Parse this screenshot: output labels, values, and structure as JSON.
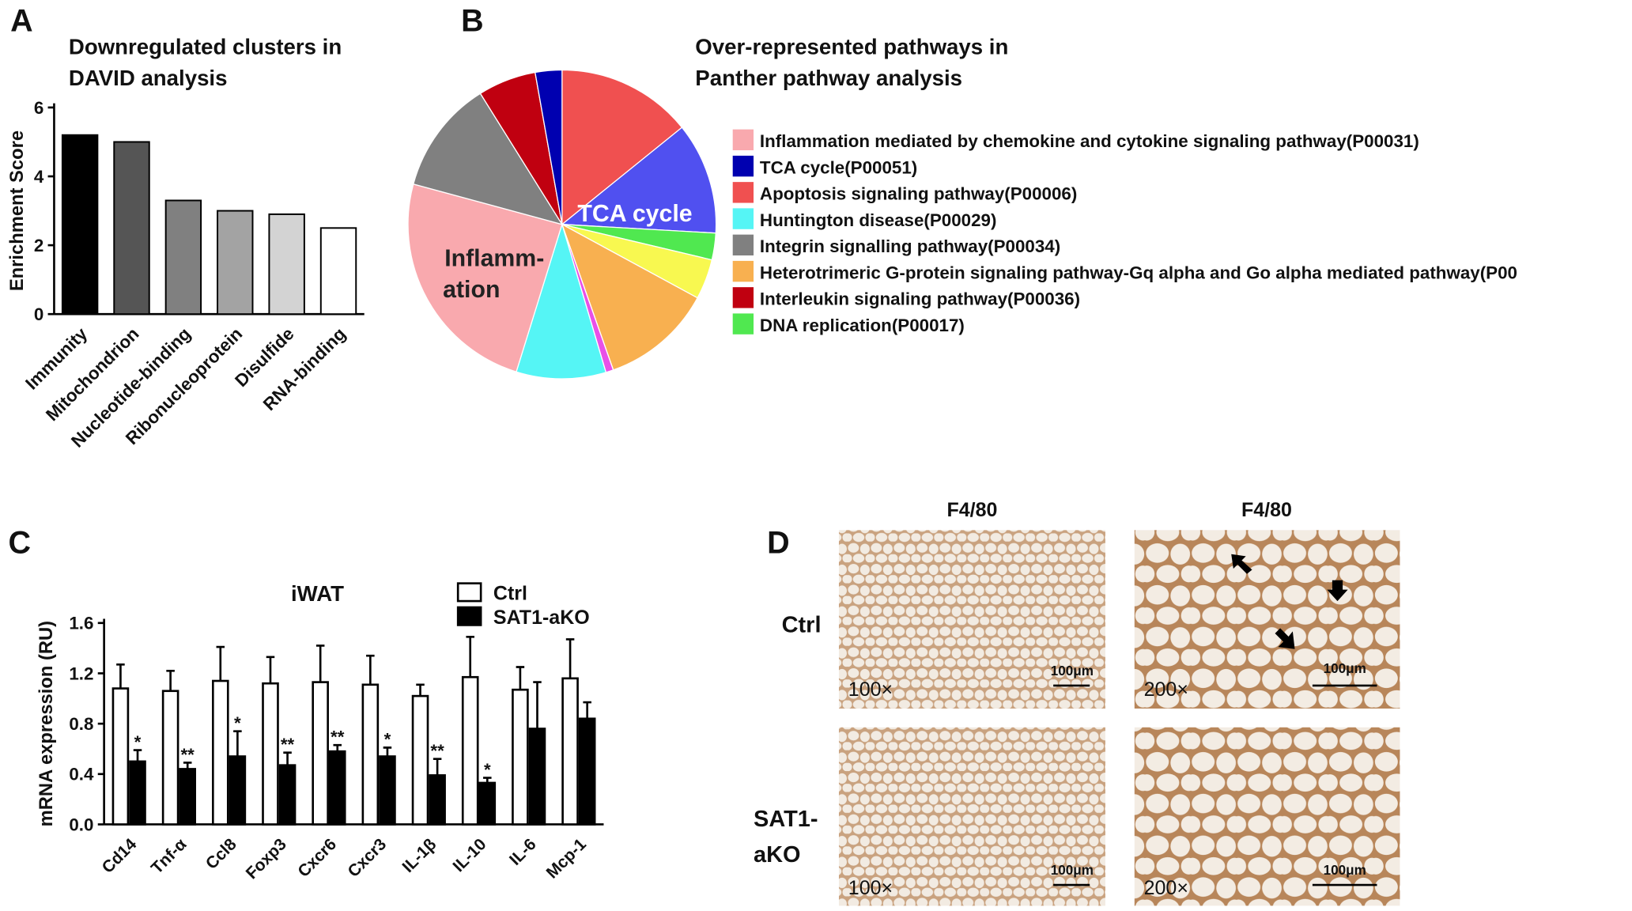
{
  "chart_data": [
    {
      "type": "bar",
      "label": "A",
      "title": [
        "Downregulated clusters in",
        "DAVID analysis"
      ],
      "ylabel": "Enrichment Score",
      "categories": [
        "Immunity",
        "Mitochondrion",
        "Nucleotide-binding",
        "Ribonucleoprotein",
        "Disulfide",
        "RNA-binding"
      ],
      "values": [
        5.2,
        5.0,
        3.3,
        3.0,
        2.9,
        2.5
      ],
      "colors": [
        "#000000",
        "#555555",
        "#808080",
        "#a3a3a3",
        "#d3d3d3",
        "#ffffff"
      ],
      "ylim": [
        0,
        6
      ],
      "yticks": [
        0,
        2,
        4,
        6
      ]
    },
    {
      "type": "pie",
      "label": "B",
      "title": [
        "Over-represented pathways in",
        "Panther pathway analysis"
      ],
      "values": [
        14.2,
        11.7,
        2.8,
        4.2,
        11.7,
        0.8,
        9.4,
        24.4,
        11.9,
        6.1,
        2.8
      ],
      "colors": [
        "#f05050",
        "#5050f0",
        "#50e850",
        "#f8f850",
        "#f8b050",
        "#e850e8",
        "#55f5f5",
        "#f9a9ae",
        "#808080",
        "#c00010",
        "#0000b0"
      ],
      "annotations": [
        [
          "TCA cycle"
        ],
        [
          "Inflamm-",
          "ation"
        ]
      ],
      "legend": [
        {
          "name": "Inflammation mediated by chemokine and cytokine signaling pathway(P00031)",
          "color": "#f9a9ae"
        },
        {
          "name": "TCA cycle(P00051)",
          "color": "#0000b0"
        },
        {
          "name": "Apoptosis signaling pathway(P00006)",
          "color": "#f05050"
        },
        {
          "name": "Huntington disease(P00029)",
          "color": "#55f5f5"
        },
        {
          "name": "Integrin signalling pathway(P00034)",
          "color": "#808080"
        },
        {
          "name": "Heterotrimeric G-protein signaling pathway-Gq alpha and Go alpha mediated pathway(P00",
          "color": "#f8b050"
        },
        {
          "name": "Interleukin signaling pathway(P00036)",
          "color": "#c00010"
        },
        {
          "name": "DNA replication(P00017)",
          "color": "#50e850"
        }
      ]
    },
    {
      "type": "bar",
      "label": "C",
      "title": "iWAT",
      "ylabel": "mRNA expression (RU)",
      "categories": [
        "Cd14",
        "Tnf-α",
        "Ccl8",
        "Foxp3",
        "Cxcr6",
        "Cxcr3",
        "IL-1β",
        "IL-10",
        "IL-6",
        "Mcp-1"
      ],
      "series": [
        {
          "name": "Ctrl",
          "color": "#ffffff",
          "values": [
            1.08,
            1.06,
            1.14,
            1.12,
            1.13,
            1.11,
            1.02,
            1.17,
            1.07,
            1.16
          ],
          "errors": [
            0.19,
            0.16,
            0.27,
            0.21,
            0.29,
            0.23,
            0.09,
            0.32,
            0.18,
            0.31
          ]
        },
        {
          "name": "SAT1-aKO",
          "color": "#000000",
          "values": [
            0.5,
            0.44,
            0.54,
            0.47,
            0.58,
            0.54,
            0.39,
            0.33,
            0.76,
            0.84
          ],
          "errors": [
            0.09,
            0.05,
            0.2,
            0.1,
            0.05,
            0.07,
            0.13,
            0.04,
            0.37,
            0.13
          ],
          "significance": [
            "*",
            "**",
            "*",
            "**",
            "**",
            "*",
            "**",
            "*",
            null,
            null
          ]
        }
      ],
      "ylim": [
        0,
        1.6
      ],
      "yticks": [
        {
          "value": 0,
          "label": "0.0"
        },
        0.4,
        0.8,
        1.2,
        1.6
      ]
    }
  ],
  "micrographs": {
    "label": "D",
    "column_headers": [
      "F4/80",
      "F4/80"
    ],
    "row_labels": [
      [
        "Ctrl"
      ],
      [
        "SAT1-",
        "aKO"
      ]
    ],
    "images": [
      {
        "magnification": "100×",
        "scale_bar": "100μm"
      },
      {
        "magnification": "200×",
        "scale_bar": "100μm"
      },
      {
        "magnification": "100×",
        "scale_bar": "100μm"
      },
      {
        "magnification": "200×",
        "scale_bar": "100μm"
      }
    ]
  }
}
